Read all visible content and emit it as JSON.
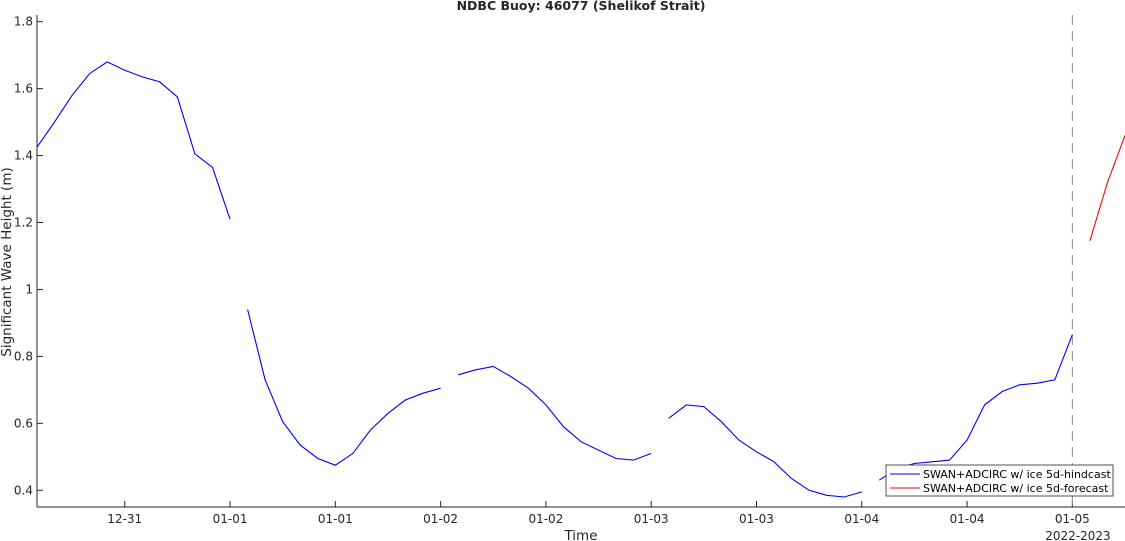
{
  "chart_data": {
    "type": "line",
    "title": "NDBC Buoy: 46077 (Shelikof Strait)",
    "xlabel": "Time",
    "ylabel": "Significant Wave Height (m)",
    "x_secondary_label": "2022-2023",
    "ylim": [
      0.35,
      1.82
    ],
    "xlim": [
      0,
      124
    ],
    "y_ticks": [
      0.4,
      0.6,
      0.8,
      1,
      1.2,
      1.4,
      1.6,
      1.8
    ],
    "y_tick_labels": [
      "0.4",
      "0.6",
      "0.8",
      "1",
      "1.2",
      "1.4",
      "1.6",
      "1.8"
    ],
    "x_ticks": [
      10,
      22,
      34,
      46,
      58,
      70,
      82,
      94,
      106,
      118
    ],
    "x_tick_labels": [
      "12-31",
      "01-01",
      "01-01",
      "01-02",
      "01-02",
      "01-03",
      "01-03",
      "01-04",
      "01-04",
      "01-05"
    ],
    "forecast_start_marker": 118,
    "grid": false,
    "legend_position": "bottom-right",
    "series": [
      {
        "name": "SWAN+ADCIRC w/ ice 5d-hindcast",
        "color": "#0000ff",
        "segments": [
          [
            [
              0,
              1.425
            ],
            [
              2,
              1.5
            ],
            [
              4,
              1.58
            ],
            [
              6,
              1.645
            ],
            [
              8,
              1.68
            ],
            [
              10,
              1.655
            ],
            [
              12,
              1.635
            ],
            [
              14,
              1.62
            ],
            [
              16,
              1.575
            ],
            [
              18,
              1.405
            ],
            [
              20,
              1.365
            ],
            [
              22,
              1.21
            ]
          ],
          [
            [
              24,
              0.94
            ],
            [
              26,
              0.73
            ],
            [
              28,
              0.605
            ],
            [
              30,
              0.535
            ],
            [
              32,
              0.495
            ],
            [
              34,
              0.475
            ],
            [
              36,
              0.51
            ],
            [
              38,
              0.58
            ],
            [
              40,
              0.63
            ],
            [
              42,
              0.67
            ],
            [
              44,
              0.69
            ],
            [
              46,
              0.705
            ]
          ],
          [
            [
              48,
              0.745
            ],
            [
              50,
              0.76
            ],
            [
              52,
              0.77
            ],
            [
              54,
              0.74
            ],
            [
              56,
              0.705
            ],
            [
              58,
              0.655
            ],
            [
              60,
              0.59
            ],
            [
              62,
              0.545
            ],
            [
              64,
              0.52
            ],
            [
              66,
              0.495
            ],
            [
              68,
              0.49
            ],
            [
              70,
              0.51
            ]
          ],
          [
            [
              72,
              0.615
            ],
            [
              74,
              0.655
            ],
            [
              76,
              0.65
            ],
            [
              78,
              0.605
            ],
            [
              80,
              0.55
            ],
            [
              82,
              0.515
            ],
            [
              84,
              0.485
            ],
            [
              86,
              0.435
            ],
            [
              88,
              0.4
            ],
            [
              90,
              0.385
            ],
            [
              92,
              0.38
            ],
            [
              94,
              0.395
            ]
          ],
          [
            [
              96,
              0.43
            ],
            [
              98,
              0.465
            ],
            [
              100,
              0.48
            ],
            [
              102,
              0.485
            ],
            [
              104,
              0.49
            ],
            [
              106,
              0.55
            ],
            [
              108,
              0.655
            ],
            [
              110,
              0.695
            ],
            [
              112,
              0.715
            ],
            [
              114,
              0.72
            ],
            [
              116,
              0.73
            ],
            [
              118,
              0.865
            ]
          ]
        ]
      },
      {
        "name": "SWAN+ADCIRC w/ ice 5d-forecast",
        "color": "#ff0000",
        "segments": [
          [
            [
              120,
              1.145
            ],
            [
              122,
              1.32
            ],
            [
              124,
              1.46
            ],
            [
              126,
              1.515
            ]
          ]
        ]
      }
    ]
  }
}
